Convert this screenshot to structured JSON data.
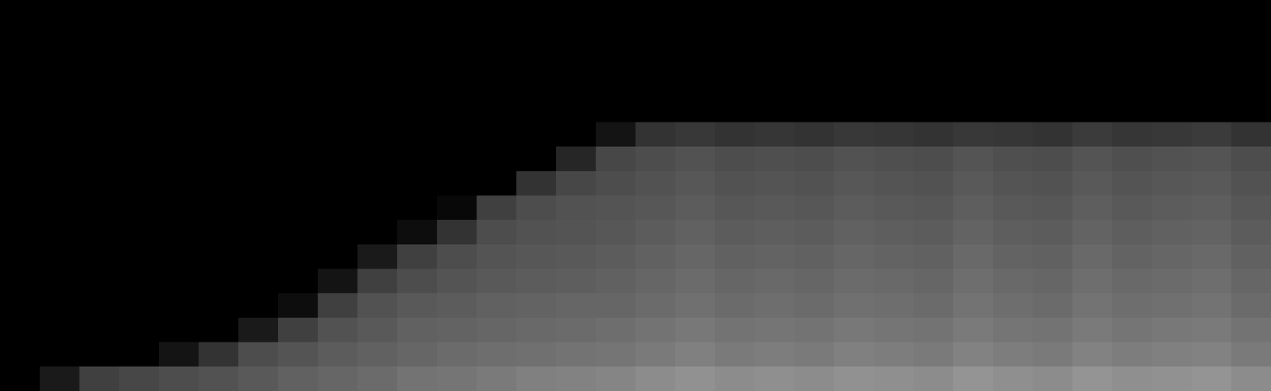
{
  "chart_data": {
    "type": "heatmap",
    "tick_labels": false,
    "zlim": [
      0,
      1
    ],
    "colors": [
      "#000000",
      "#ffffff"
    ],
    "cells": [
      [
        0,
        0,
        0,
        0,
        0,
        0,
        0,
        0,
        0,
        0,
        0,
        0,
        0,
        0,
        0,
        0,
        0,
        0,
        0,
        0,
        0,
        0,
        0,
        0,
        0,
        0,
        0,
        0,
        0,
        0,
        0,
        0
      ],
      [
        0,
        0,
        0,
        0,
        0,
        0,
        0,
        0,
        0,
        0,
        0,
        0,
        0,
        0,
        0,
        0,
        0,
        0,
        0,
        0,
        0,
        0,
        0,
        0,
        0,
        0,
        0,
        0,
        0,
        0,
        0,
        0
      ],
      [
        0,
        0,
        0,
        0,
        0,
        0,
        0,
        0,
        0,
        0,
        0,
        0,
        0,
        0,
        0,
        0,
        0,
        0,
        0,
        0,
        0,
        0,
        0,
        0,
        0,
        0,
        0,
        0,
        0,
        0,
        0,
        0
      ],
      [
        0,
        0,
        0,
        0,
        0,
        0,
        0,
        0,
        0,
        0,
        0,
        0,
        0,
        0,
        0,
        0,
        0,
        0,
        0,
        0,
        0,
        0,
        0,
        0,
        0,
        0,
        0,
        0,
        0,
        0,
        0,
        0
      ],
      [
        0,
        0,
        0,
        0,
        0,
        0,
        0,
        0,
        0,
        0,
        0,
        0,
        0,
        0,
        0,
        0,
        0,
        0,
        0,
        0,
        0,
        0,
        0,
        0,
        0,
        0,
        0,
        0,
        0,
        0,
        0,
        0
      ],
      [
        0,
        0,
        0,
        0,
        0,
        0,
        0,
        0,
        0,
        0,
        0,
        0,
        0,
        0,
        0,
        0.08,
        0.2,
        0.22,
        0.2,
        0.21,
        0.2,
        0.22,
        0.21,
        0.2,
        0.22,
        0.21,
        0.2,
        0.23,
        0.21,
        0.22,
        0.23,
        0.2
      ],
      [
        0,
        0,
        0,
        0,
        0,
        0,
        0,
        0,
        0,
        0,
        0,
        0,
        0,
        0,
        0.15,
        0.28,
        0.3,
        0.32,
        0.3,
        0.31,
        0.3,
        0.32,
        0.31,
        0.3,
        0.33,
        0.31,
        0.3,
        0.33,
        0.31,
        0.32,
        0.33,
        0.3
      ],
      [
        0,
        0,
        0,
        0,
        0,
        0,
        0,
        0,
        0,
        0,
        0,
        0,
        0,
        0.2,
        0.28,
        0.3,
        0.32,
        0.34,
        0.32,
        0.33,
        0.32,
        0.34,
        0.33,
        0.32,
        0.35,
        0.33,
        0.32,
        0.35,
        0.33,
        0.34,
        0.35,
        0.32
      ],
      [
        0,
        0,
        0,
        0,
        0,
        0,
        0,
        0,
        0,
        0,
        0,
        0.03,
        0.25,
        0.3,
        0.32,
        0.33,
        0.34,
        0.36,
        0.34,
        0.35,
        0.34,
        0.36,
        0.35,
        0.34,
        0.37,
        0.35,
        0.34,
        0.37,
        0.35,
        0.36,
        0.37,
        0.34
      ],
      [
        0,
        0,
        0,
        0,
        0,
        0,
        0,
        0,
        0,
        0,
        0.05,
        0.2,
        0.3,
        0.32,
        0.33,
        0.34,
        0.36,
        0.38,
        0.36,
        0.37,
        0.36,
        0.38,
        0.37,
        0.36,
        0.39,
        0.37,
        0.36,
        0.39,
        0.37,
        0.38,
        0.39,
        0.36
      ],
      [
        0,
        0,
        0,
        0,
        0,
        0,
        0,
        0,
        0,
        0.1,
        0.25,
        0.3,
        0.33,
        0.34,
        0.35,
        0.36,
        0.38,
        0.4,
        0.38,
        0.39,
        0.38,
        0.4,
        0.39,
        0.38,
        0.41,
        0.39,
        0.38,
        0.41,
        0.39,
        0.4,
        0.41,
        0.38
      ],
      [
        0,
        0,
        0,
        0,
        0,
        0,
        0,
        0,
        0.08,
        0.25,
        0.3,
        0.33,
        0.35,
        0.36,
        0.37,
        0.38,
        0.4,
        0.42,
        0.4,
        0.41,
        0.4,
        0.42,
        0.41,
        0.4,
        0.43,
        0.41,
        0.4,
        0.43,
        0.41,
        0.42,
        0.43,
        0.4
      ],
      [
        0,
        0,
        0,
        0,
        0,
        0,
        0,
        0.05,
        0.25,
        0.32,
        0.35,
        0.36,
        0.38,
        0.39,
        0.4,
        0.4,
        0.42,
        0.44,
        0.42,
        0.43,
        0.42,
        0.44,
        0.43,
        0.42,
        0.45,
        0.43,
        0.42,
        0.45,
        0.43,
        0.44,
        0.45,
        0.42
      ],
      [
        0,
        0,
        0,
        0,
        0,
        0,
        0.1,
        0.25,
        0.32,
        0.35,
        0.38,
        0.39,
        0.4,
        0.41,
        0.42,
        0.43,
        0.45,
        0.47,
        0.45,
        0.46,
        0.45,
        0.47,
        0.46,
        0.45,
        0.48,
        0.46,
        0.45,
        0.48,
        0.46,
        0.47,
        0.48,
        0.45
      ],
      [
        0,
        0,
        0,
        0,
        0.08,
        0.2,
        0.3,
        0.33,
        0.36,
        0.38,
        0.4,
        0.42,
        0.43,
        0.44,
        0.45,
        0.46,
        0.48,
        0.5,
        0.48,
        0.49,
        0.48,
        0.5,
        0.49,
        0.48,
        0.51,
        0.49,
        0.48,
        0.51,
        0.49,
        0.5,
        0.51,
        0.48
      ],
      [
        0,
        0.1,
        0.25,
        0.28,
        0.3,
        0.32,
        0.35,
        0.38,
        0.4,
        0.42,
        0.45,
        0.46,
        0.48,
        0.5,
        0.51,
        0.52,
        0.55,
        0.57,
        0.55,
        0.56,
        0.55,
        0.57,
        0.56,
        0.55,
        0.58,
        0.56,
        0.55,
        0.58,
        0.56,
        0.57,
        0.58,
        0.55
      ]
    ]
  }
}
